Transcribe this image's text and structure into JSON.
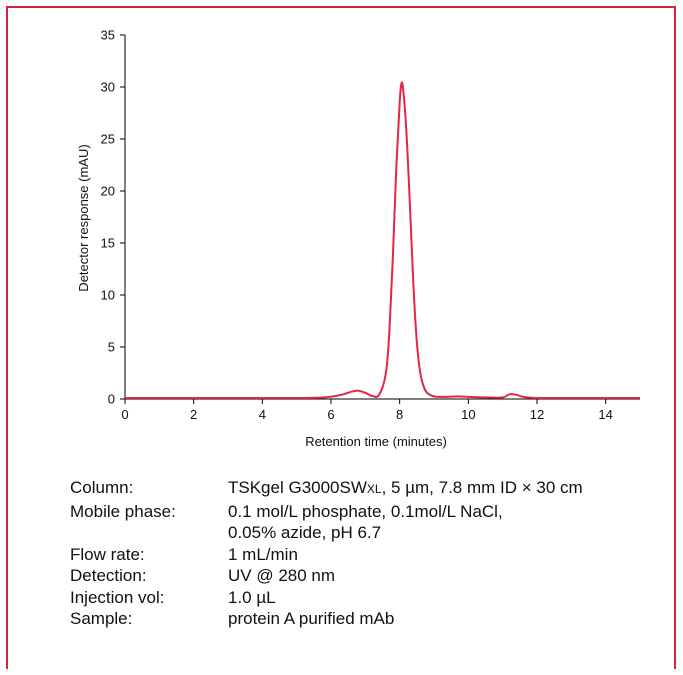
{
  "chart_data": {
    "type": "line",
    "xlabel": "Retention time (minutes)",
    "ylabel": "Detector response (mAU)",
    "xlim": [
      0,
      15
    ],
    "ylim": [
      0,
      35
    ],
    "xticks": [
      0,
      2,
      4,
      6,
      8,
      10,
      12,
      14
    ],
    "yticks": [
      0,
      5,
      10,
      15,
      20,
      25,
      30,
      35
    ],
    "grid": false,
    "line_color": "#e0264a",
    "series": [
      {
        "x": [
          0,
          1,
          2,
          3,
          4,
          5,
          5.8,
          6.3,
          6.6,
          6.8,
          7.0,
          7.2,
          7.4,
          7.6,
          7.7,
          7.8,
          7.9,
          8.0,
          8.05,
          8.1,
          8.2,
          8.3,
          8.4,
          8.5,
          8.6,
          8.7,
          8.8,
          9.0,
          9.3,
          9.7,
          10.0,
          10.5,
          11.0,
          11.2,
          11.4,
          11.6,
          12.0,
          13.0,
          14.0,
          15.0
        ],
        "y": [
          0.1,
          0.1,
          0.1,
          0.1,
          0.1,
          0.1,
          0.15,
          0.4,
          0.7,
          0.8,
          0.6,
          0.3,
          0.4,
          2.5,
          6.5,
          13.5,
          22.0,
          28.5,
          30.3,
          29.8,
          25.5,
          18.5,
          11.0,
          5.5,
          2.5,
          1.2,
          0.6,
          0.25,
          0.2,
          0.25,
          0.2,
          0.15,
          0.15,
          0.45,
          0.4,
          0.2,
          0.1,
          0.1,
          0.1,
          0.1
        ]
      }
    ]
  },
  "conditions": [
    {
      "label": "Column:",
      "value": "TSKgel G3000SW",
      "value_sc": "XL",
      "value_rest": ", 5 µm, 7.8 mm ID × 30 cm"
    },
    {
      "label": "Mobile phase:",
      "value": "0.1 mol/L phosphate, 0.1mol/L NaCl,"
    },
    {
      "label": "",
      "value": "0.05% azide, pH 6.7"
    },
    {
      "label": "Flow rate:",
      "value": "1 mL/min"
    },
    {
      "label": "Detection:",
      "value": "UV @ 280 nm"
    },
    {
      "label": "Injection vol:",
      "value": "1.0 µL"
    },
    {
      "label": "Sample:",
      "value": "protein A purified mAb"
    }
  ]
}
